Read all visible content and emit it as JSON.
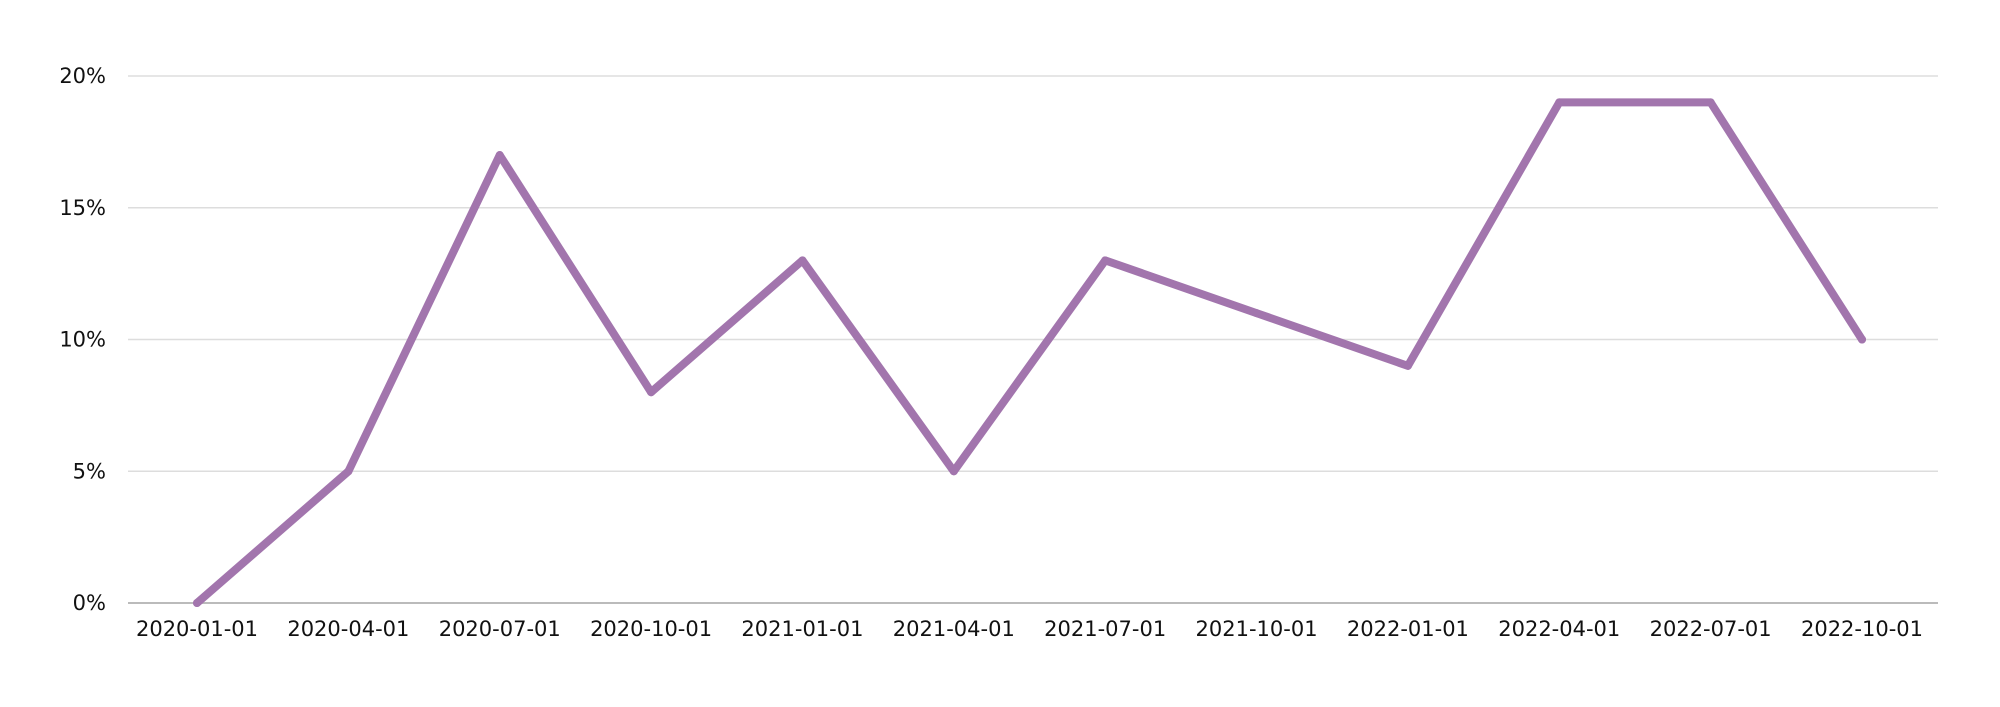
{
  "chart_data": {
    "type": "line",
    "title": "",
    "xlabel": "",
    "ylabel": "",
    "x": [
      "2020-01-01",
      "2020-04-01",
      "2020-07-01",
      "2020-10-01",
      "2021-01-01",
      "2021-04-01",
      "2021-07-01",
      "2021-10-01",
      "2022-01-01",
      "2022-04-01",
      "2022-07-01",
      "2022-10-01"
    ],
    "series": [
      {
        "values": [
          0,
          5,
          17,
          8,
          13,
          5,
          13,
          11,
          9,
          19,
          19,
          10
        ],
        "color": "#a275ad"
      }
    ],
    "ylim": [
      0,
      20
    ],
    "y_ticks": [
      0,
      5,
      10,
      15,
      20
    ],
    "y_tick_format": "percent",
    "grid": "horizontal",
    "legend": "none",
    "colors": {
      "line": "#a275ad",
      "grid": "#dddddd",
      "axis": "#bbbbbb",
      "text": "#111111",
      "background": "#ffffff"
    }
  }
}
